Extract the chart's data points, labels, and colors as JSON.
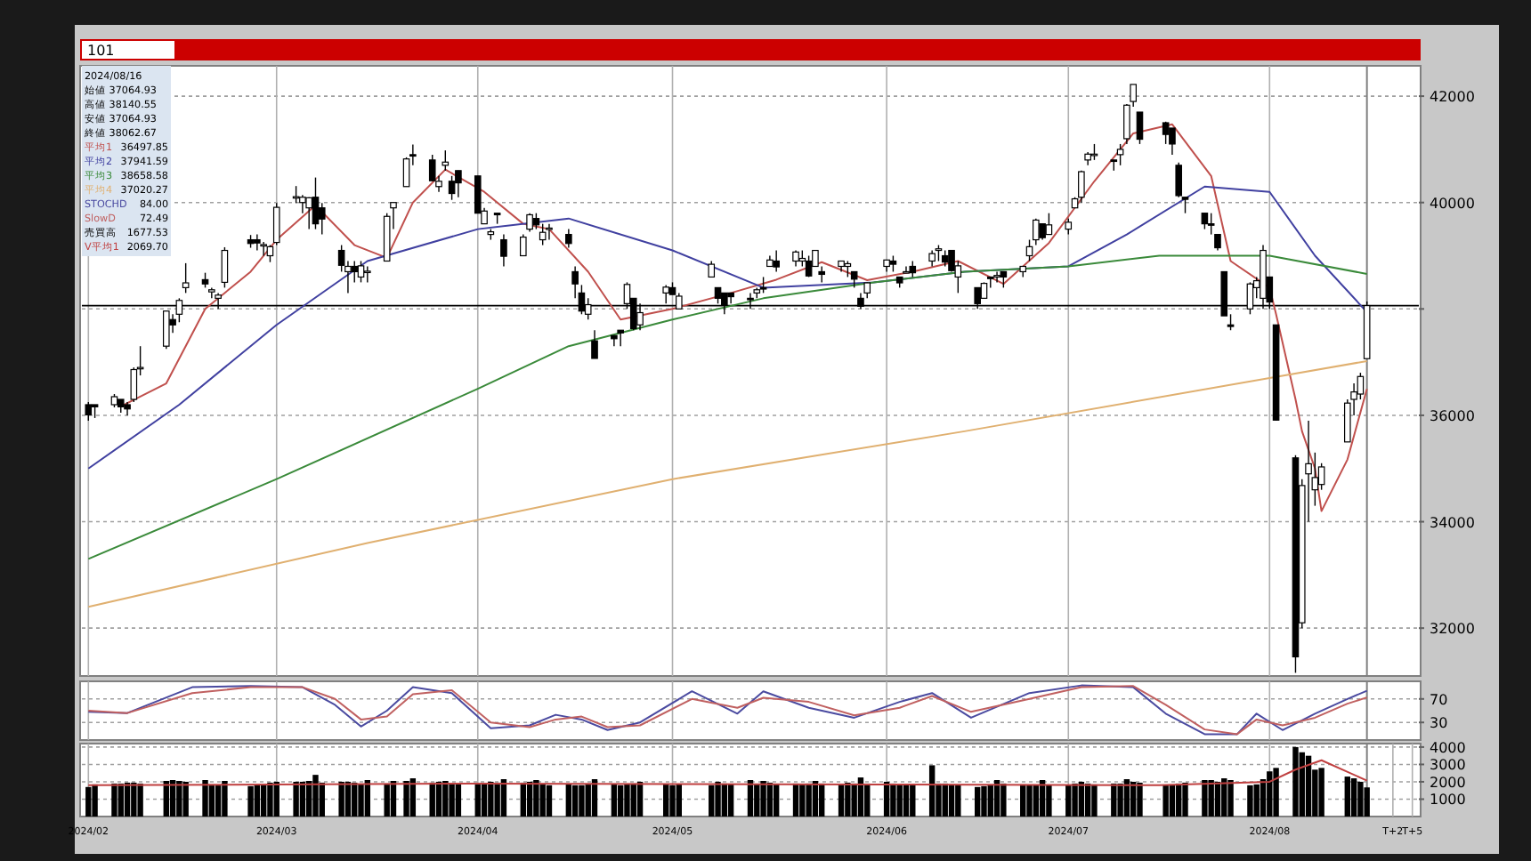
{
  "chart_data": [
    {
      "type": "candlestick",
      "annotations": [
        "101",
        "2024/08/16",
        "始値 37064.93",
        "高値 38140.55",
        "安値 37064.93",
        "終値 38062.67",
        "36497.85",
        "37941.59",
        "38658.58",
        "37020.27"
      ],
      "legend": "top left",
      "grid": true,
      "tick_labels": "y",
      "xlim": [
        "2024-01-31",
        "2024-08-24"
      ],
      "xticks": [
        {
          "value": "2024-02-01",
          "label": null
        },
        {
          "value": "2024-03-01",
          "label": null
        },
        {
          "value": "2024-04-01",
          "label": null
        },
        {
          "value": "2024-05-01",
          "label": null
        },
        {
          "value": "2024-06-03",
          "label": null
        },
        {
          "value": "2024-07-01",
          "label": null
        },
        {
          "value": "2024-08-01",
          "label": null
        }
      ],
      "ylim": [
        31100,
        42570
      ],
      "yticks": [
        32000,
        34000,
        36000,
        {
          "value": 38000,
          "label": null
        },
        40000,
        42000
      ],
      "ref_lines": [
        {
          "axis": "y",
          "value": 38062.67,
          "color": "#000000"
        },
        {
          "axis": "x",
          "value": "2024-08-16",
          "color": "#808080"
        }
      ],
      "x": [
        "2024-02-01",
        "2024-02-02",
        "2024-02-05",
        "2024-02-06",
        "2024-02-07",
        "2024-02-08",
        "2024-02-09",
        "2024-02-13",
        "2024-02-14",
        "2024-02-15",
        "2024-02-16",
        "2024-02-19",
        "2024-02-20",
        "2024-02-21",
        "2024-02-22",
        "2024-02-26",
        "2024-02-27",
        "2024-02-28",
        "2024-02-29",
        "2024-03-01",
        "2024-03-04",
        "2024-03-05",
        "2024-03-06",
        "2024-03-07",
        "2024-03-08",
        "2024-03-11",
        "2024-03-12",
        "2024-03-13",
        "2024-03-14",
        "2024-03-15",
        "2024-03-18",
        "2024-03-19",
        "2024-03-21",
        "2024-03-22",
        "2024-03-25",
        "2024-03-26",
        "2024-03-27",
        "2024-03-28",
        "2024-03-29",
        "2024-04-01",
        "2024-04-02",
        "2024-04-03",
        "2024-04-04",
        "2024-04-05",
        "2024-04-08",
        "2024-04-09",
        "2024-04-10",
        "2024-04-11",
        "2024-04-12",
        "2024-04-15",
        "2024-04-16",
        "2024-04-17",
        "2024-04-18",
        "2024-04-19",
        "2024-04-22",
        "2024-04-23",
        "2024-04-24",
        "2024-04-25",
        "2024-04-26",
        "2024-04-30",
        "2024-05-01",
        "2024-05-02",
        "2024-05-07",
        "2024-05-08",
        "2024-05-09",
        "2024-05-10",
        "2024-05-13",
        "2024-05-14",
        "2024-05-15",
        "2024-05-16",
        "2024-05-17",
        "2024-05-20",
        "2024-05-21",
        "2024-05-22",
        "2024-05-23",
        "2024-05-24",
        "2024-05-27",
        "2024-05-28",
        "2024-05-29",
        "2024-05-30",
        "2024-05-31",
        "2024-06-03",
        "2024-06-04",
        "2024-06-05",
        "2024-06-06",
        "2024-06-07",
        "2024-06-10",
        "2024-06-11",
        "2024-06-12",
        "2024-06-13",
        "2024-06-14",
        "2024-06-17",
        "2024-06-18",
        "2024-06-19",
        "2024-06-20",
        "2024-06-21",
        "2024-06-24",
        "2024-06-25",
        "2024-06-26",
        "2024-06-27",
        "2024-06-28",
        "2024-07-01",
        "2024-07-02",
        "2024-07-03",
        "2024-07-04",
        "2024-07-05",
        "2024-07-08",
        "2024-07-09",
        "2024-07-10",
        "2024-07-11",
        "2024-07-12",
        "2024-07-16",
        "2024-07-17",
        "2024-07-18",
        "2024-07-19",
        "2024-07-22",
        "2024-07-23",
        "2024-07-24",
        "2024-07-25",
        "2024-07-26",
        "2024-07-29",
        "2024-07-30",
        "2024-07-31",
        "2024-08-01",
        "2024-08-02",
        "2024-08-05",
        "2024-08-06",
        "2024-08-07",
        "2024-08-08",
        "2024-08-09",
        "2024-08-13",
        "2024-08-14",
        "2024-08-15",
        "2024-08-16"
      ],
      "ohlc": [
        [
          36200,
          36250,
          35900,
          36010
        ],
        [
          36200,
          36200,
          35950,
          36160
        ],
        [
          36200,
          36400,
          36150,
          36350
        ],
        [
          36300,
          36300,
          36050,
          36160
        ],
        [
          36200,
          36250,
          36000,
          36120
        ],
        [
          36300,
          36900,
          36250,
          36860
        ],
        [
          36900,
          37300,
          36750,
          36900
        ],
        [
          37300,
          37960,
          37250,
          37960
        ],
        [
          37800,
          37900,
          37550,
          37700
        ],
        [
          37900,
          38200,
          37750,
          38160
        ],
        [
          38400,
          38860,
          38300,
          38490
        ],
        [
          38550,
          38680,
          38400,
          38470
        ],
        [
          38320,
          38400,
          38200,
          38360
        ],
        [
          38200,
          38300,
          38000,
          38260
        ],
        [
          38500,
          39160,
          38400,
          39100
        ],
        [
          39300,
          39390,
          39150,
          39230
        ],
        [
          39300,
          39400,
          39100,
          39240
        ],
        [
          39200,
          39260,
          39000,
          39210
        ],
        [
          39000,
          39200,
          38880,
          39170
        ],
        [
          39250,
          39990,
          39200,
          39910
        ],
        [
          40100,
          40310,
          39990,
          40110
        ],
        [
          40000,
          40140,
          39800,
          40100
        ],
        [
          39900,
          40100,
          39500,
          40090
        ],
        [
          40100,
          40470,
          39500,
          39600
        ],
        [
          39900,
          39990,
          39400,
          39690
        ],
        [
          39100,
          39200,
          38700,
          38820
        ],
        [
          38700,
          38900,
          38300,
          38800
        ],
        [
          38800,
          38900,
          38500,
          38700
        ],
        [
          38600,
          38900,
          38500,
          38810
        ],
        [
          38700,
          38800,
          38500,
          38710
        ],
        [
          38900,
          39800,
          38900,
          39740
        ],
        [
          39900,
          40000,
          39500,
          40000
        ],
        [
          40300,
          40850,
          40300,
          40820
        ],
        [
          40900,
          41090,
          40700,
          40890
        ],
        [
          40800,
          40900,
          40400,
          40410
        ],
        [
          40300,
          40500,
          40200,
          40400
        ],
        [
          40700,
          40980,
          40600,
          40760
        ],
        [
          40400,
          40500,
          40050,
          40170
        ],
        [
          40600,
          40600,
          40100,
          40370
        ],
        [
          40500,
          40500,
          39800,
          39800
        ],
        [
          39600,
          39900,
          39600,
          39840
        ],
        [
          39400,
          39500,
          39300,
          39450
        ],
        [
          39800,
          39800,
          39600,
          39770
        ],
        [
          39300,
          39400,
          38800,
          38990
        ],
        [
          39000,
          39400,
          39000,
          39350
        ],
        [
          39500,
          39800,
          39450,
          39770
        ],
        [
          39700,
          39800,
          39500,
          39580
        ],
        [
          39300,
          39600,
          39200,
          39440
        ],
        [
          39500,
          39600,
          39300,
          39520
        ],
        [
          39400,
          39500,
          39150,
          39230
        ],
        [
          38700,
          38800,
          38200,
          38470
        ],
        [
          38300,
          38450,
          37900,
          37960
        ],
        [
          37900,
          38200,
          37800,
          38080
        ],
        [
          37400,
          37600,
          37070,
          37070
        ],
        [
          37500,
          37500,
          37300,
          37440
        ],
        [
          37600,
          37600,
          37300,
          37550
        ],
        [
          38100,
          38500,
          38000,
          38460
        ],
        [
          38200,
          38200,
          37600,
          37630
        ],
        [
          37700,
          38100,
          37600,
          37930
        ],
        [
          38300,
          38450,
          38100,
          38410
        ],
        [
          38400,
          38500,
          38270,
          38270
        ],
        [
          38000,
          38300,
          38000,
          38240
        ],
        [
          38600,
          38900,
          38600,
          38840
        ],
        [
          38400,
          38400,
          38100,
          38200
        ],
        [
          38300,
          38300,
          37900,
          38070
        ],
        [
          38300,
          38300,
          38100,
          38230
        ],
        [
          38200,
          38300,
          38000,
          38180
        ],
        [
          38300,
          38400,
          38200,
          38360
        ],
        [
          38400,
          38600,
          38300,
          38390
        ],
        [
          38800,
          39000,
          38800,
          38920
        ],
        [
          38900,
          39100,
          38700,
          38790
        ],
        [
          38900,
          39100,
          38800,
          39070
        ],
        [
          38900,
          39100,
          38800,
          38950
        ],
        [
          38900,
          39000,
          38600,
          38620
        ],
        [
          38800,
          39100,
          38800,
          39100
        ],
        [
          38700,
          38800,
          38500,
          38650
        ],
        [
          38800,
          38900,
          38700,
          38900
        ],
        [
          38800,
          38900,
          38600,
          38850
        ],
        [
          38700,
          38700,
          38400,
          38560
        ],
        [
          38200,
          38300,
          38000,
          38050
        ],
        [
          38300,
          38500,
          38200,
          38490
        ],
        [
          38800,
          38920,
          38700,
          38920
        ],
        [
          38900,
          39000,
          38700,
          38840
        ],
        [
          38600,
          38600,
          38400,
          38490
        ],
        [
          38700,
          38800,
          38700,
          38700
        ],
        [
          38800,
          38900,
          38600,
          38680
        ],
        [
          38900,
          39100,
          38800,
          39040
        ],
        [
          39100,
          39200,
          38900,
          39130
        ],
        [
          39000,
          39100,
          38800,
          38880
        ],
        [
          39100,
          39100,
          38700,
          38720
        ],
        [
          38600,
          38900,
          38300,
          38810
        ],
        [
          38400,
          38400,
          38000,
          38100
        ],
        [
          38200,
          38500,
          38200,
          38480
        ],
        [
          38600,
          38600,
          38400,
          38570
        ],
        [
          38600,
          38700,
          38500,
          38630
        ],
        [
          38700,
          38700,
          38400,
          38600
        ],
        [
          38700,
          38800,
          38600,
          38800
        ],
        [
          39000,
          39300,
          38900,
          39170
        ],
        [
          39300,
          39700,
          39200,
          39670
        ],
        [
          39600,
          39600,
          39300,
          39340
        ],
        [
          39400,
          39800,
          39400,
          39580
        ],
        [
          39500,
          39700,
          39400,
          39630
        ],
        [
          39900,
          40100,
          39900,
          40070
        ],
        [
          40100,
          40600,
          40000,
          40580
        ],
        [
          40800,
          40950,
          40700,
          40910
        ],
        [
          40900,
          41100,
          40800,
          40910
        ],
        [
          40800,
          40800,
          40600,
          40780
        ],
        [
          40900,
          41100,
          40700,
          41000
        ],
        [
          41200,
          41850,
          41100,
          41830
        ],
        [
          41900,
          42220,
          41800,
          42220
        ],
        [
          41700,
          41700,
          41100,
          41190
        ],
        [
          41500,
          41520,
          41100,
          41280
        ],
        [
          41400,
          41400,
          40900,
          41100
        ],
        [
          40700,
          40750,
          40100,
          40130
        ],
        [
          40100,
          40100,
          39800,
          40060
        ],
        [
          39800,
          39800,
          39500,
          39600
        ],
        [
          39600,
          39800,
          39400,
          39590
        ],
        [
          39400,
          39400,
          39100,
          39150
        ],
        [
          38700,
          38700,
          37870,
          37870
        ],
        [
          37700,
          37900,
          37600,
          37670
        ],
        [
          38000,
          38500,
          37900,
          38470
        ],
        [
          38400,
          38600,
          38200,
          38530
        ],
        [
          38200,
          39200,
          38000,
          39100
        ],
        [
          38600,
          38600,
          38000,
          38130
        ],
        [
          37700,
          37700,
          35900,
          35910
        ],
        [
          35200,
          35250,
          31160,
          31460
        ],
        [
          32100,
          34800,
          32000,
          34680
        ],
        [
          34900,
          35900,
          34000,
          35090
        ],
        [
          34600,
          35300,
          34300,
          34830
        ],
        [
          34700,
          35100,
          34600,
          35030
        ],
        [
          35500,
          36300,
          35500,
          36230
        ],
        [
          36300,
          36600,
          36000,
          36440
        ],
        [
          36400,
          36800,
          36300,
          36730
        ],
        [
          37064.93,
          38140.55,
          37064.93,
          38062.67
        ]
      ],
      "series": [
        {
          "name": "平均1",
          "type": "line",
          "color": "#c0504d",
          "x": [
            "2024-02-06",
            "2024-02-13",
            "2024-02-19",
            "2024-02-26",
            "2024-03-01",
            "2024-03-07",
            "2024-03-13",
            "2024-03-18",
            "2024-03-22",
            "2024-03-27",
            "2024-04-02",
            "2024-04-08",
            "2024-04-12",
            "2024-04-18",
            "2024-04-23",
            "2024-05-01",
            "2024-05-10",
            "2024-05-17",
            "2024-05-24",
            "2024-05-31",
            "2024-06-07",
            "2024-06-14",
            "2024-06-21",
            "2024-06-28",
            "2024-07-05",
            "2024-07-11",
            "2024-07-17",
            "2024-07-23",
            "2024-07-26",
            "2024-08-01",
            "2024-08-02",
            "2024-08-05",
            "2024-08-06",
            "2024-08-08",
            "2024-08-09",
            "2024-08-13",
            "2024-08-16"
          ],
          "values": [
            36170,
            36600,
            38000,
            38700,
            39300,
            39950,
            39200,
            38960,
            40000,
            40620,
            40200,
            39600,
            39500,
            38700,
            37800,
            38000,
            38300,
            38550,
            38880,
            38540,
            38700,
            38900,
            38470,
            39240,
            40400,
            41300,
            41470,
            40500,
            38900,
            38400,
            37900,
            36300,
            35700,
            35000,
            34200,
            35170,
            36497.85
          ]
        },
        {
          "name": "平均2",
          "type": "line",
          "color": "#4040a0",
          "x": [
            "2024-02-01",
            "2024-02-15",
            "2024-03-01",
            "2024-03-15",
            "2024-04-01",
            "2024-04-15",
            "2024-05-01",
            "2024-05-15",
            "2024-06-01",
            "2024-06-15",
            "2024-07-01",
            "2024-07-10",
            "2024-07-22",
            "2024-08-01",
            "2024-08-08",
            "2024-08-16"
          ],
          "values": [
            35000,
            36200,
            37700,
            38900,
            39500,
            39700,
            39100,
            38400,
            38500,
            38700,
            38800,
            39400,
            40300,
            40200,
            39000,
            37941.59
          ]
        },
        {
          "name": "平均3",
          "type": "line",
          "color": "#3a8a3a",
          "x": [
            "2024-02-01",
            "2024-03-01",
            "2024-04-01",
            "2024-04-15",
            "2024-05-01",
            "2024-05-15",
            "2024-06-01",
            "2024-06-15",
            "2024-07-01",
            "2024-07-15",
            "2024-08-01",
            "2024-08-16"
          ],
          "values": [
            33300,
            34800,
            36500,
            37300,
            37800,
            38200,
            38500,
            38700,
            38800,
            39000,
            39000,
            38658.58
          ]
        },
        {
          "name": "平均4",
          "type": "line",
          "color": "#e0b070",
          "x": [
            "2024-02-01",
            "2024-03-15",
            "2024-05-01",
            "2024-06-15",
            "2024-08-01",
            "2024-08-16"
          ],
          "values": [
            32400,
            33600,
            34800,
            35700,
            36700,
            37020.27
          ]
        }
      ]
    },
    {
      "type": "line",
      "annotations": [
        "84.00",
        "72.49"
      ],
      "grid": true,
      "tick_labels": "y",
      "xlim": [
        "2024-01-31",
        "2024-08-24"
      ],
      "xticks": [
        {
          "value": "2024-02-01",
          "label": null
        },
        {
          "value": "2024-03-01",
          "label": null
        },
        {
          "value": "2024-04-01",
          "label": null
        },
        {
          "value": "2024-05-01",
          "label": null
        },
        {
          "value": "2024-06-03",
          "label": null
        },
        {
          "value": "2024-07-01",
          "label": null
        },
        {
          "value": "2024-08-01",
          "label": null
        }
      ],
      "ylim": [
        0,
        100
      ],
      "yticks": [
        30,
        70
      ],
      "ref_lines": [
        {
          "axis": "x",
          "value": "2024-08-16",
          "color": "#808080"
        }
      ],
      "series": [
        {
          "name": "STOCHD",
          "color": "#4a4aa0",
          "x": [
            "2024-02-01",
            "2024-02-07",
            "2024-02-17",
            "2024-02-26",
            "2024-03-05",
            "2024-03-10",
            "2024-03-14",
            "2024-03-18",
            "2024-03-22",
            "2024-03-28",
            "2024-04-03",
            "2024-04-09",
            "2024-04-13",
            "2024-04-17",
            "2024-04-21",
            "2024-04-26",
            "2024-05-04",
            "2024-05-11",
            "2024-05-15",
            "2024-05-22",
            "2024-05-29",
            "2024-06-05",
            "2024-06-10",
            "2024-06-16",
            "2024-06-25",
            "2024-07-03",
            "2024-07-11",
            "2024-07-16",
            "2024-07-22",
            "2024-07-27",
            "2024-07-30",
            "2024-08-03",
            "2024-08-08",
            "2024-08-13",
            "2024-08-16"
          ],
          "values": [
            48,
            46,
            90,
            92,
            90,
            60,
            23,
            50,
            90,
            80,
            20,
            25,
            43,
            35,
            17,
            30,
            83,
            45,
            83,
            55,
            38,
            65,
            80,
            38,
            80,
            93,
            90,
            45,
            10,
            10,
            45,
            17,
            45,
            70,
            84
          ]
        },
        {
          "name": "SlowD",
          "color": "#c06060",
          "x": [
            "2024-02-01",
            "2024-02-07",
            "2024-02-17",
            "2024-02-26",
            "2024-03-05",
            "2024-03-10",
            "2024-03-14",
            "2024-03-18",
            "2024-03-22",
            "2024-03-28",
            "2024-04-03",
            "2024-04-09",
            "2024-04-13",
            "2024-04-17",
            "2024-04-21",
            "2024-04-26",
            "2024-05-04",
            "2024-05-11",
            "2024-05-15",
            "2024-05-22",
            "2024-05-29",
            "2024-06-05",
            "2024-06-10",
            "2024-06-16",
            "2024-06-25",
            "2024-07-03",
            "2024-07-11",
            "2024-07-16",
            "2024-07-22",
            "2024-07-27",
            "2024-07-30",
            "2024-08-03",
            "2024-08-08",
            "2024-08-13",
            "2024-08-16"
          ],
          "values": [
            50,
            46,
            80,
            90,
            90,
            70,
            35,
            40,
            78,
            85,
            30,
            22,
            35,
            40,
            22,
            25,
            70,
            55,
            72,
            65,
            42,
            55,
            75,
            48,
            70,
            90,
            92,
            60,
            18,
            10,
            35,
            25,
            38,
            62,
            72.49
          ]
        }
      ]
    },
    {
      "type": "bar",
      "annotations": [
        "1677.53",
        "2069.70"
      ],
      "grid": true,
      "xlim": [
        "2024-01-31",
        "2024-08-24"
      ],
      "xticks": [
        {
          "value": "2024-02-01",
          "label": "2024/02"
        },
        {
          "value": "2024-03-01",
          "label": "2024/03"
        },
        {
          "value": "2024-04-01",
          "label": "2024/04"
        },
        {
          "value": "2024-05-01",
          "label": "2024/05"
        },
        {
          "value": "2024-06-03",
          "label": "2024/06"
        },
        {
          "value": "2024-07-01",
          "label": "2024/07"
        },
        {
          "value": "2024-08-01",
          "label": "2024/08"
        },
        {
          "value": "2024-08-20",
          "label": "T+2"
        },
        {
          "value": "2024-08-23",
          "label": "T+5"
        }
      ],
      "ylim": [
        0,
        4200
      ],
      "yticks": [
        1000,
        2000,
        3000,
        4000
      ],
      "ref_lines": [
        {
          "axis": "x",
          "value": "2024-08-16",
          "color": "#808080"
        }
      ],
      "x": [
        "2024-02-01",
        "2024-02-02",
        "2024-02-05",
        "2024-02-06",
        "2024-02-07",
        "2024-02-08",
        "2024-02-09",
        "2024-02-13",
        "2024-02-14",
        "2024-02-15",
        "2024-02-16",
        "2024-02-19",
        "2024-02-20",
        "2024-02-21",
        "2024-02-22",
        "2024-02-26",
        "2024-02-27",
        "2024-02-28",
        "2024-02-29",
        "2024-03-01",
        "2024-03-04",
        "2024-03-05",
        "2024-03-06",
        "2024-03-07",
        "2024-03-08",
        "2024-03-11",
        "2024-03-12",
        "2024-03-13",
        "2024-03-14",
        "2024-03-15",
        "2024-03-18",
        "2024-03-19",
        "2024-03-21",
        "2024-03-22",
        "2024-03-25",
        "2024-03-26",
        "2024-03-27",
        "2024-03-28",
        "2024-03-29",
        "2024-04-01",
        "2024-04-02",
        "2024-04-03",
        "2024-04-04",
        "2024-04-05",
        "2024-04-08",
        "2024-04-09",
        "2024-04-10",
        "2024-04-11",
        "2024-04-12",
        "2024-04-15",
        "2024-04-16",
        "2024-04-17",
        "2024-04-18",
        "2024-04-19",
        "2024-04-22",
        "2024-04-23",
        "2024-04-24",
        "2024-04-25",
        "2024-04-26",
        "2024-04-30",
        "2024-05-01",
        "2024-05-02",
        "2024-05-07",
        "2024-05-08",
        "2024-05-09",
        "2024-05-10",
        "2024-05-13",
        "2024-05-14",
        "2024-05-15",
        "2024-05-16",
        "2024-05-17",
        "2024-05-20",
        "2024-05-21",
        "2024-05-22",
        "2024-05-23",
        "2024-05-24",
        "2024-05-27",
        "2024-05-28",
        "2024-05-29",
        "2024-05-30",
        "2024-05-31",
        "2024-06-03",
        "2024-06-04",
        "2024-06-05",
        "2024-06-06",
        "2024-06-07",
        "2024-06-10",
        "2024-06-11",
        "2024-06-12",
        "2024-06-13",
        "2024-06-14",
        "2024-06-17",
        "2024-06-18",
        "2024-06-19",
        "2024-06-20",
        "2024-06-21",
        "2024-06-24",
        "2024-06-25",
        "2024-06-26",
        "2024-06-27",
        "2024-06-28",
        "2024-07-01",
        "2024-07-02",
        "2024-07-03",
        "2024-07-04",
        "2024-07-05",
        "2024-07-08",
        "2024-07-09",
        "2024-07-10",
        "2024-07-11",
        "2024-07-12",
        "2024-07-16",
        "2024-07-17",
        "2024-07-18",
        "2024-07-19",
        "2024-07-22",
        "2024-07-23",
        "2024-07-24",
        "2024-07-25",
        "2024-07-26",
        "2024-07-29",
        "2024-07-30",
        "2024-07-31",
        "2024-08-01",
        "2024-08-02",
        "2024-08-05",
        "2024-08-06",
        "2024-08-07",
        "2024-08-08",
        "2024-08-09",
        "2024-08-13",
        "2024-08-14",
        "2024-08-15",
        "2024-08-16"
      ],
      "series": [
        {
          "name": "売買高",
          "color": "#000000",
          "values": [
            1700,
            1850,
            1900,
            1900,
            1950,
            1950,
            1900,
            2050,
            2100,
            2050,
            2000,
            2100,
            1850,
            1800,
            2050,
            1750,
            1800,
            1800,
            1950,
            2000,
            2000,
            2000,
            2050,
            2400,
            1950,
            2000,
            2000,
            1950,
            1850,
            2100,
            1900,
            2050,
            2050,
            2200,
            1950,
            2000,
            2050,
            1900,
            1900,
            1900,
            1900,
            2000,
            1950,
            2150,
            1950,
            2000,
            2100,
            1900,
            1800,
            1850,
            1800,
            1800,
            1900,
            2150,
            1850,
            1800,
            1850,
            1900,
            2000,
            1850,
            1800,
            1850,
            1800,
            2000,
            1900,
            1850,
            2100,
            1850,
            2050,
            1950,
            1850,
            1900,
            1850,
            1900,
            2050,
            1900,
            1850,
            1950,
            1900,
            2250,
            1900,
            2000,
            1900,
            1850,
            1800,
            1850,
            2950,
            1900,
            1900,
            1850,
            1800,
            1700,
            1750,
            1850,
            2100,
            1900,
            1850,
            1800,
            1800,
            2100,
            1800,
            1800,
            1900,
            2000,
            1900,
            1850,
            1900,
            1900,
            2150,
            2000,
            1950,
            1800,
            1850,
            1900,
            1950,
            2100,
            2100,
            2000,
            2200,
            2100,
            1800,
            1850,
            2150,
            2600,
            2800,
            4000,
            3700,
            3500,
            2700,
            2800,
            2300,
            2200,
            2000,
            1677.53
          ]
        },
        {
          "name": "V平均1",
          "type": "line",
          "color": "#c04040",
          "x": [
            "2024-02-01",
            "2024-04-01",
            "2024-06-01",
            "2024-07-15",
            "2024-08-01",
            "2024-08-05",
            "2024-08-09",
            "2024-08-16"
          ],
          "values": [
            1800,
            1900,
            1850,
            1800,
            2000,
            2700,
            3240,
            2069.7
          ]
        }
      ]
    }
  ]
}
